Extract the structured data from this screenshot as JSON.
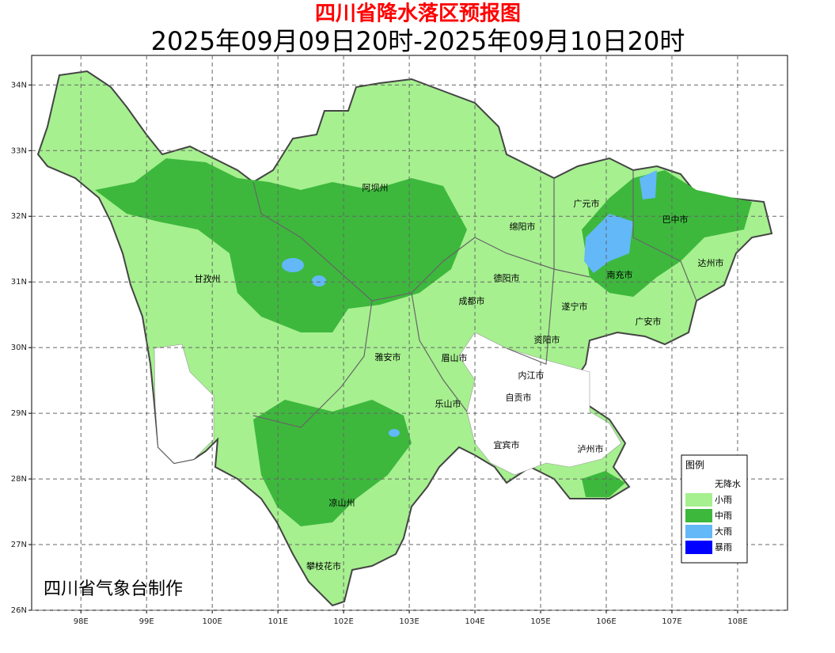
{
  "header": {
    "title": "四川省降水落区预报图",
    "subtitle": "2025年09月09日20时-2025年09月10日20时"
  },
  "map": {
    "xlim": [
      97.25,
      108.76
    ],
    "ylim": [
      26,
      34.45
    ],
    "xticks": [
      {
        "value": 98,
        "label": "98E"
      },
      {
        "value": 99,
        "label": "99E"
      },
      {
        "value": 100,
        "label": "100E"
      },
      {
        "value": 101,
        "label": "101E"
      },
      {
        "value": 102,
        "label": "102E"
      },
      {
        "value": 103,
        "label": "103E"
      },
      {
        "value": 104,
        "label": "104E"
      },
      {
        "value": 105,
        "label": "105E"
      },
      {
        "value": 106,
        "label": "106E"
      },
      {
        "value": 107,
        "label": "107E"
      },
      {
        "value": 108,
        "label": "108E"
      }
    ],
    "yticks": [
      {
        "value": 26,
        "label": "26N"
      },
      {
        "value": 27,
        "label": "27N"
      },
      {
        "value": 28,
        "label": "28N"
      },
      {
        "value": 29,
        "label": "29N"
      },
      {
        "value": 30,
        "label": "30N"
      },
      {
        "value": 31,
        "label": "31N"
      },
      {
        "value": 32,
        "label": "32N"
      },
      {
        "value": 33,
        "label": "33N"
      },
      {
        "value": 34,
        "label": "34N"
      }
    ],
    "grid": true,
    "regions": [
      "阿坝州",
      "甘孜州",
      "绵阳市",
      "广元市",
      "巴中市",
      "达州市",
      "南充市",
      "德阳市",
      "成都市",
      "遂宁市",
      "广安市",
      "资阳市",
      "雅安市",
      "眉山市",
      "内江市",
      "自贡市",
      "乐山市",
      "宜宾市",
      "泸州市",
      "凉山州",
      "攀枝花市"
    ],
    "legend": {
      "title": "图例",
      "items": [
        {
          "label": "无降水",
          "color": "#ffffff"
        },
        {
          "label": "小雨",
          "color": "#a6f08f"
        },
        {
          "label": "中雨",
          "color": "#3db83d"
        },
        {
          "label": "大雨",
          "color": "#63b8f8"
        },
        {
          "label": "暴雨",
          "color": "#0000fe"
        }
      ]
    },
    "credit": "四川省气象台制作"
  }
}
